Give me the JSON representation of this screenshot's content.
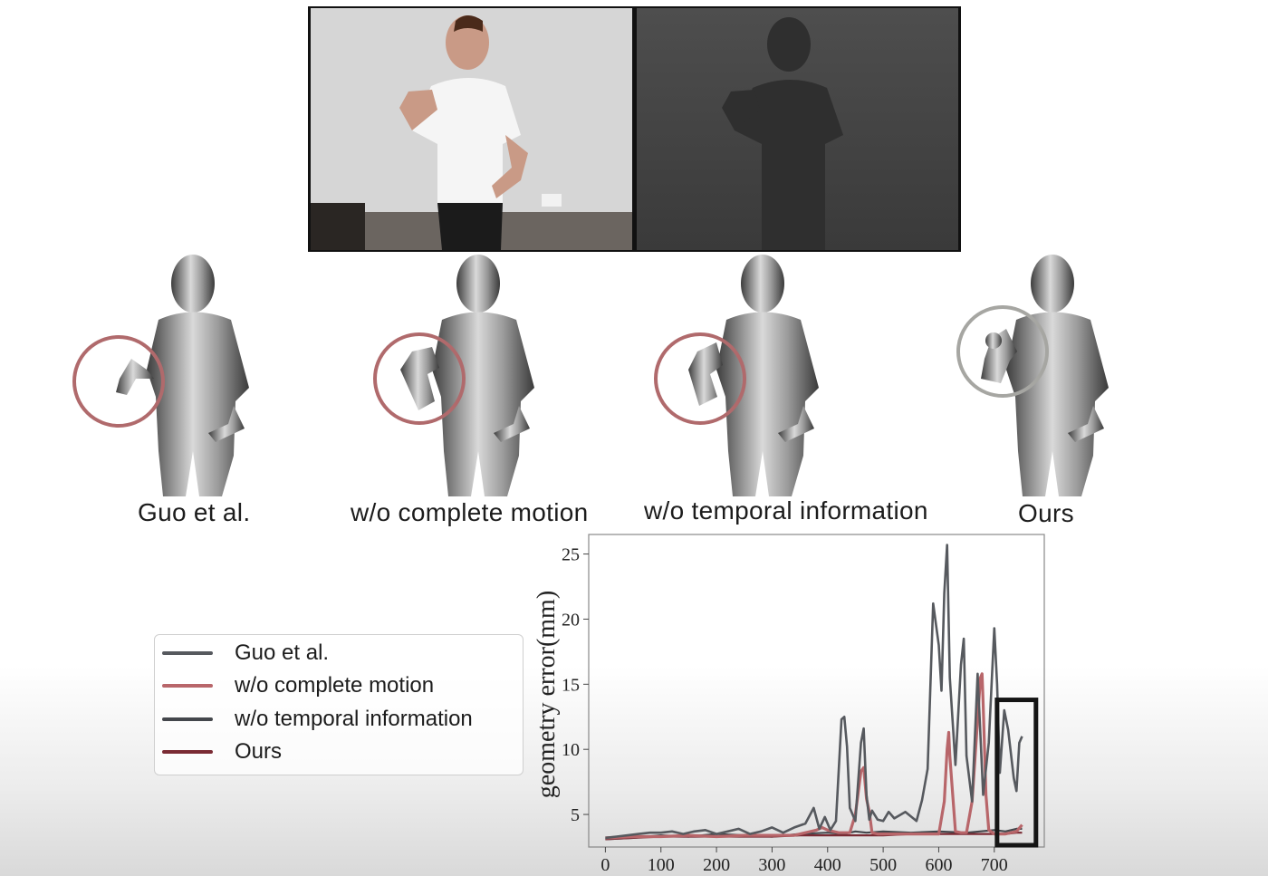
{
  "figure": {
    "method_labels": [
      "Guo et al.",
      "w/o complete motion",
      "w/o temporal information",
      "Ours"
    ]
  },
  "colors": {
    "guo": "#56595e",
    "wo_complete_motion": "#b8666a",
    "wo_temporal": "#44474c",
    "ours": "#7a2b34",
    "highlight_circle": "#b06a6c",
    "ours_circle": "#a6a6a2",
    "box": "#151515"
  },
  "icons": [
    "rgb-frame-image",
    "depth-frame-image",
    "body-mesh-render",
    "highlight-circle",
    "highlight-box"
  ],
  "chart_data": {
    "type": "line",
    "title": "",
    "xlabel": "",
    "ylabel": "geometry error(mm)",
    "xlim": [
      -30,
      790
    ],
    "ylim": [
      2.5,
      26.5
    ],
    "xticks": [
      0,
      100,
      200,
      300,
      400,
      500,
      600,
      700
    ],
    "yticks": [
      5,
      10,
      15,
      20,
      25
    ],
    "legend_position": "left, outside the axes",
    "grid": false,
    "highlight_box": {
      "x": [
        705,
        775
      ],
      "y": [
        2.0,
        13.8
      ]
    },
    "series": [
      {
        "name": "Guo et al.",
        "color": "#56595e",
        "x": [
          0,
          20,
          40,
          60,
          80,
          100,
          120,
          140,
          160,
          180,
          200,
          220,
          240,
          260,
          280,
          300,
          320,
          340,
          360,
          375,
          385,
          395,
          405,
          415,
          425,
          430,
          435,
          440,
          450,
          460,
          465,
          470,
          475,
          480,
          490,
          500,
          510,
          520,
          540,
          560,
          570,
          580,
          590,
          600,
          605,
          610,
          615,
          620,
          630,
          640,
          645,
          650,
          660,
          670,
          680,
          690,
          700,
          705,
          710,
          718,
          725,
          735,
          740,
          745,
          750
        ],
        "values": [
          3.2,
          3.3,
          3.4,
          3.5,
          3.6,
          3.6,
          3.7,
          3.5,
          3.7,
          3.8,
          3.5,
          3.7,
          3.9,
          3.5,
          3.7,
          4.0,
          3.6,
          4.0,
          4.3,
          5.5,
          3.9,
          4.8,
          3.8,
          4.5,
          12.3,
          12.5,
          10.2,
          5.5,
          4.5,
          10.5,
          11.6,
          6.5,
          4.6,
          5.3,
          4.6,
          4.5,
          5.2,
          4.7,
          5.2,
          4.5,
          6.1,
          8.5,
          21.2,
          18.0,
          14.5,
          22.0,
          25.7,
          15.5,
          8.8,
          16.5,
          18.5,
          9.5,
          6.0,
          15.8,
          6.5,
          10.5,
          19.3,
          15.0,
          8.2,
          13.0,
          11.5,
          7.8,
          6.8,
          10.5,
          11.0
        ]
      },
      {
        "name": "w/o complete motion",
        "color": "#b8666a",
        "x": [
          0,
          50,
          100,
          150,
          200,
          250,
          300,
          340,
          360,
          380,
          390,
          400,
          420,
          440,
          450,
          460,
          465,
          470,
          475,
          480,
          490,
          520,
          560,
          600,
          610,
          615,
          618,
          620,
          630,
          640,
          650,
          660,
          670,
          675,
          678,
          680,
          685,
          690,
          700,
          720,
          740,
          750
        ],
        "values": [
          3.2,
          3.3,
          3.3,
          3.4,
          3.3,
          3.4,
          3.4,
          3.4,
          3.6,
          3.8,
          4.0,
          3.8,
          3.6,
          3.6,
          5.0,
          8.3,
          8.6,
          6.2,
          5.2,
          3.6,
          3.5,
          3.5,
          3.5,
          3.5,
          6.0,
          10.0,
          11.3,
          9.5,
          3.7,
          3.6,
          3.6,
          6.0,
          12.3,
          15.5,
          15.8,
          13.5,
          6.5,
          3.8,
          3.5,
          3.5,
          3.7,
          4.2
        ]
      },
      {
        "name": "w/o temporal information",
        "color": "#44474c",
        "x": [
          0,
          50,
          100,
          150,
          200,
          250,
          300,
          350,
          400,
          430,
          450,
          470,
          500,
          550,
          600,
          650,
          700,
          720,
          740,
          750
        ],
        "values": [
          3.1,
          3.2,
          3.4,
          3.3,
          3.5,
          3.4,
          3.3,
          3.5,
          3.6,
          3.5,
          3.7,
          3.6,
          3.7,
          3.6,
          3.7,
          3.6,
          3.8,
          3.7,
          3.9,
          3.9
        ]
      },
      {
        "name": "Ours",
        "color": "#7a2b34",
        "x": [
          0,
          50,
          100,
          150,
          200,
          250,
          300,
          350,
          400,
          450,
          500,
          550,
          600,
          650,
          700,
          720,
          740,
          750
        ],
        "values": [
          3.1,
          3.2,
          3.3,
          3.3,
          3.3,
          3.3,
          3.3,
          3.4,
          3.4,
          3.4,
          3.4,
          3.5,
          3.5,
          3.5,
          3.5,
          3.5,
          3.6,
          3.6
        ]
      }
    ]
  }
}
